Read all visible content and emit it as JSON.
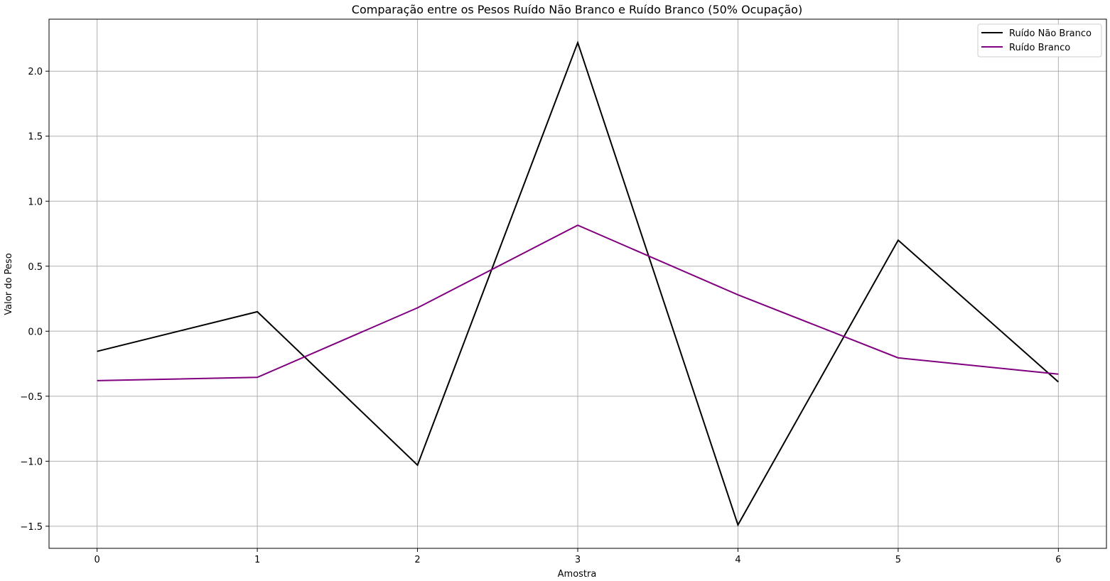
{
  "chart_data": {
    "type": "line",
    "title": "Comparação entre os Pesos Ruído Não Branco e Ruído Branco (50% Ocupação)",
    "xlabel": "Amostra",
    "ylabel": "Valor do Peso",
    "x": [
      0,
      1,
      2,
      3,
      4,
      5,
      6
    ],
    "xlim": [
      -0.3,
      6.3
    ],
    "ylim": [
      -1.67,
      2.4
    ],
    "xticks": [
      0,
      1,
      2,
      3,
      4,
      5,
      6
    ],
    "xtick_labels": [
      "0",
      "1",
      "2",
      "3",
      "4",
      "5",
      "6"
    ],
    "yticks": [
      -1.5,
      -1.0,
      -0.5,
      0.0,
      0.5,
      1.0,
      1.5,
      2.0
    ],
    "ytick_labels": [
      "−1.5",
      "−1.0",
      "−0.5",
      "0.0",
      "0.5",
      "1.0",
      "1.5",
      "2.0"
    ],
    "grid": true,
    "legend_position": "top-right",
    "series": [
      {
        "name": "Ruído Não Branco",
        "color": "#000000",
        "values": [
          -0.155,
          0.15,
          -1.03,
          2.22,
          -1.49,
          0.7,
          -0.39
        ]
      },
      {
        "name": "Ruído Branco",
        "color": "#800080",
        "values": [
          -0.38,
          -0.355,
          0.18,
          0.815,
          0.28,
          -0.205,
          -0.33
        ]
      }
    ]
  }
}
